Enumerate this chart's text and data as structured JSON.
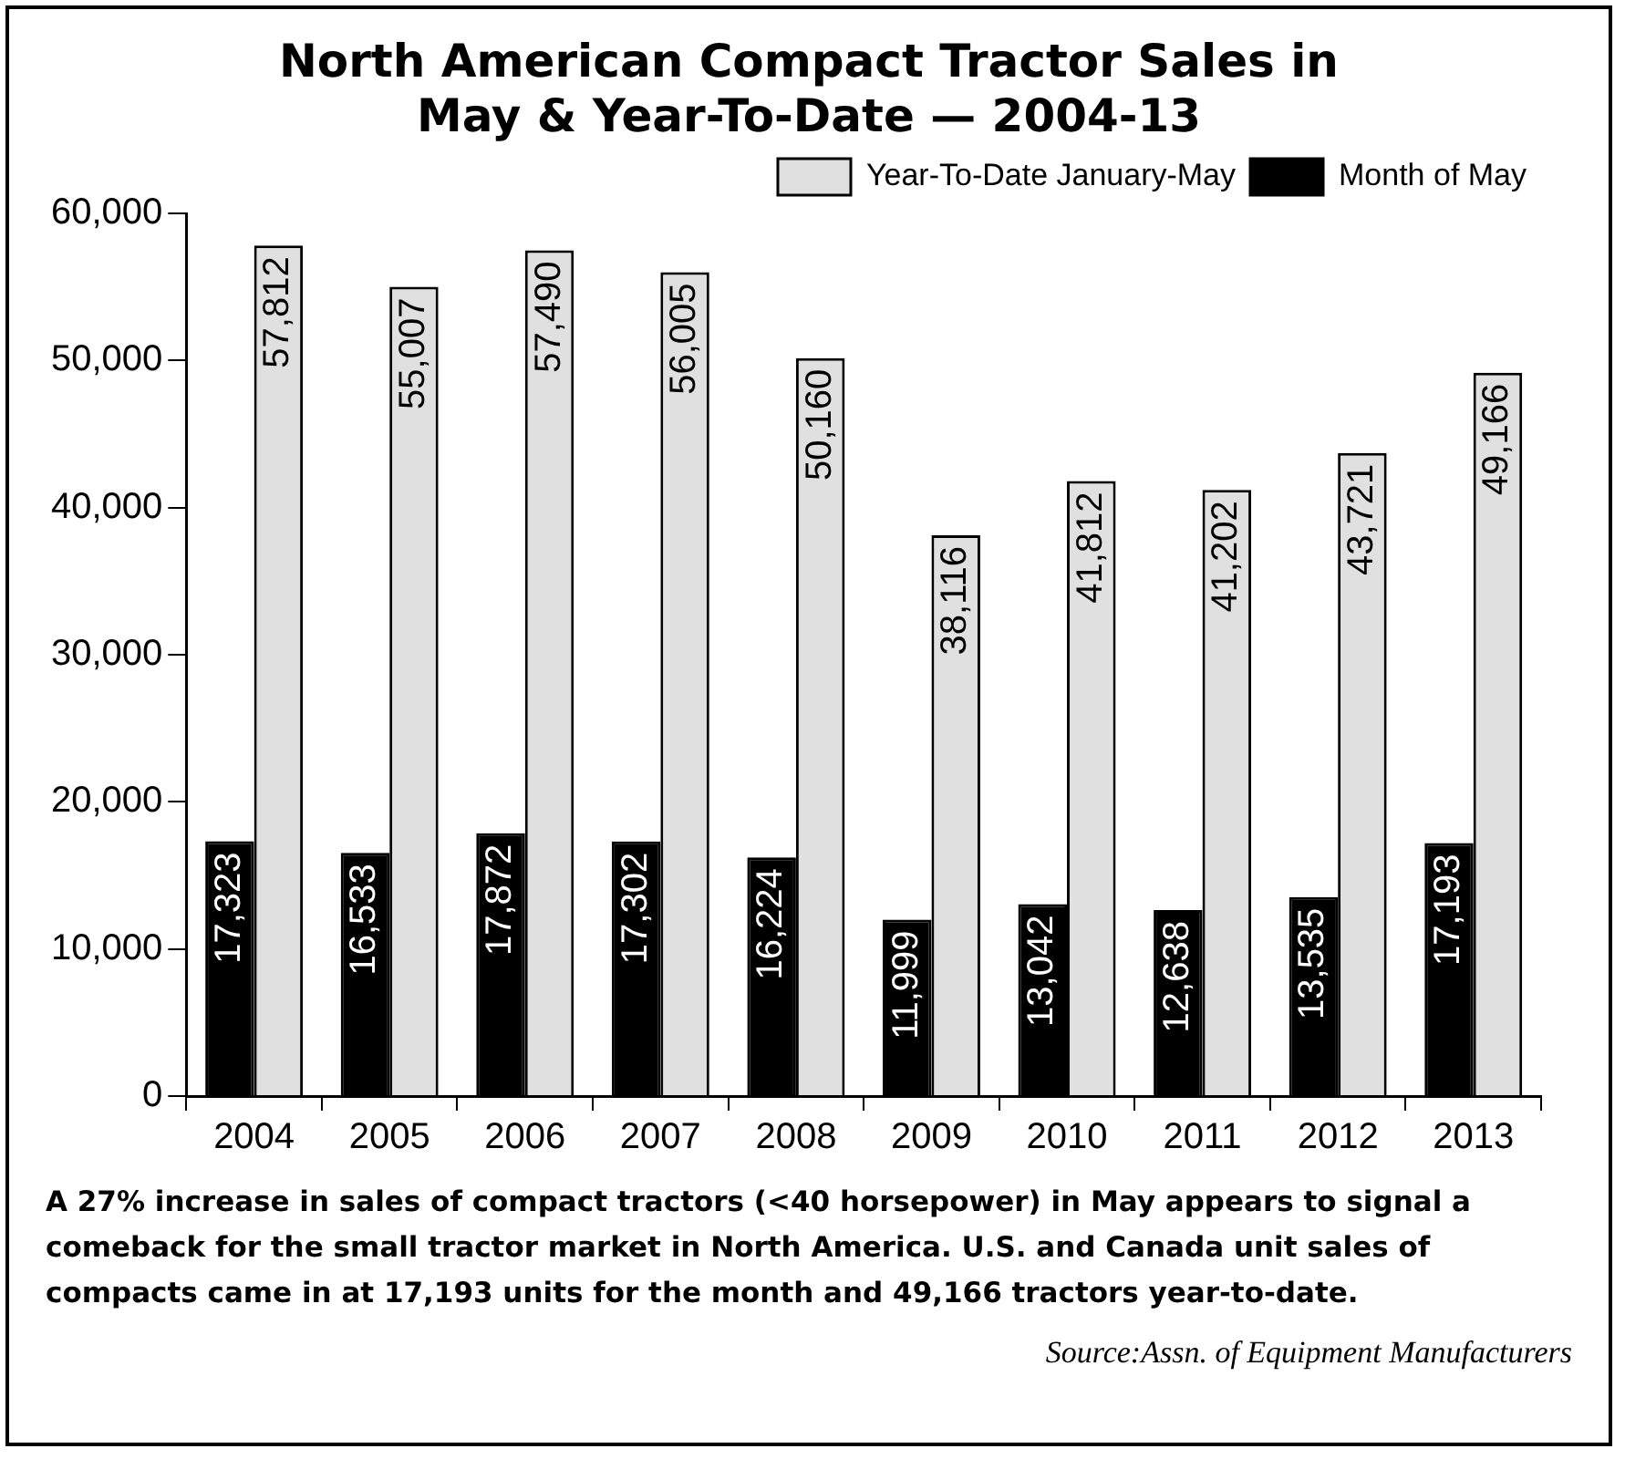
{
  "chart_data": {
    "type": "bar",
    "title": "North American Compact Tractor Sales in May & Year-To-Date — 2004-13",
    "categories": [
      "2004",
      "2005",
      "2006",
      "2007",
      "2008",
      "2009",
      "2010",
      "2011",
      "2012",
      "2013"
    ],
    "series": [
      {
        "name": "Month of May",
        "color": "#000000",
        "values": [
          17323,
          16533,
          17872,
          17302,
          16224,
          11999,
          13042,
          12638,
          13535,
          17193
        ],
        "value_labels": [
          "17,323",
          "16,533",
          "17,872",
          "17,302",
          "16,224",
          "11,999",
          "13,042",
          "12,638",
          "13,535",
          "17,193"
        ]
      },
      {
        "name": "Year-To-Date January-May",
        "color": "#e0e0e0",
        "values": [
          57812,
          55007,
          57490,
          56005,
          50160,
          38116,
          41812,
          41202,
          43721,
          49166
        ],
        "value_labels": [
          "57,812",
          "55,007",
          "57,490",
          "56,005",
          "50,160",
          "38,116",
          "41,812",
          "41,202",
          "43,721",
          "49,166"
        ]
      }
    ],
    "ylim": [
      0,
      60000
    ],
    "yticks": [
      0,
      {
        "value": 10000,
        "label": "10,000"
      },
      {
        "value": 20000,
        "label": "20,000"
      },
      {
        "value": 30000,
        "label": "30,000"
      },
      {
        "value": 40000,
        "label": "40,000"
      },
      {
        "value": 50000,
        "label": "50,000"
      },
      {
        "value": 60000,
        "label": "60,000"
      }
    ],
    "grid": false,
    "legend": "top right",
    "annotations": [
      "A 27% increase in sales of compact tractors (<40 horsepower) in May appears to signal a comeback for the small tractor market in North America. U.S. and Canada unit sales of compacts came in at 17,193 units for the month and 49,166 tractors year-to-date.",
      "Source:Assn. of Equipment Manufacturers"
    ]
  }
}
